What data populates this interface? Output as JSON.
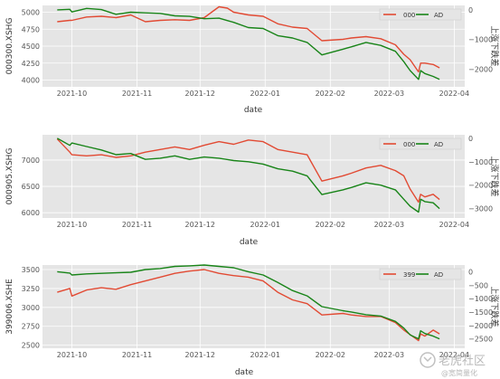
{
  "colors": {
    "price": "#E24A33",
    "ad": "#188418",
    "panel_bg": "#E5E5E5",
    "grid": "#FFFFFF"
  },
  "x_axis_label": "date",
  "x_tick_labels": [
    "2021-10",
    "2021-11",
    "2021-12",
    "2022-01",
    "2022-02",
    "2022-03",
    "2022-04"
  ],
  "watermark": {
    "main": "老虎社区",
    "sub": "@宽简量化",
    "icon": "tiger-logo-icon"
  },
  "chart_data": [
    {
      "type": "line",
      "ylabel": "000300.XSHG",
      "y2label": "上涨下跌差",
      "legend": [
        "000",
        "AD"
      ],
      "legend_position": "upper right",
      "grid": true,
      "ylim": [
        3900,
        5100
      ],
      "y_ticks": [
        4000,
        4250,
        4500,
        4750,
        5000
      ],
      "y2lim": [
        -2600,
        150
      ],
      "y2_ticks": [
        0,
        -1000,
        -2000
      ],
      "y2_tick_labels": [
        "0",
        "−1000",
        "−2000"
      ],
      "xlim": [
        "2021-09-17",
        "2022-04-06"
      ],
      "series": [
        {
          "axis": "left",
          "color": "#E24A33",
          "x": [
            "2021-09-24",
            "2021-09-30",
            "2021-10-01",
            "2021-10-08",
            "2021-10-15",
            "2021-10-22",
            "2021-10-29",
            "2021-11-05",
            "2021-11-12",
            "2021-11-19",
            "2021-11-26",
            "2021-12-03",
            "2021-12-10",
            "2021-12-14",
            "2021-12-17",
            "2021-12-24",
            "2021-12-31",
            "2022-01-07",
            "2022-01-14",
            "2022-01-21",
            "2022-01-28",
            "2022-02-07",
            "2022-02-11",
            "2022-02-18",
            "2022-02-25",
            "2022-03-04",
            "2022-03-08",
            "2022-03-11",
            "2022-03-15",
            "2022-03-16",
            "2022-03-18",
            "2022-03-22",
            "2022-03-25"
          ],
          "y": [
            4860,
            4880,
            4880,
            4930,
            4940,
            4920,
            4960,
            4860,
            4880,
            4890,
            4880,
            4920,
            5080,
            5060,
            5000,
            4960,
            4940,
            4830,
            4780,
            4760,
            4580,
            4600,
            4620,
            4640,
            4610,
            4520,
            4380,
            4300,
            4120,
            4250,
            4250,
            4230,
            4180
          ]
        },
        {
          "axis": "right",
          "color": "#188418",
          "x": [
            "2021-09-24",
            "2021-09-30",
            "2021-10-01",
            "2021-10-08",
            "2021-10-15",
            "2021-10-22",
            "2021-10-29",
            "2021-11-05",
            "2021-11-12",
            "2021-11-19",
            "2021-11-26",
            "2021-12-03",
            "2021-12-10",
            "2021-12-17",
            "2021-12-24",
            "2021-12-31",
            "2022-01-07",
            "2022-01-14",
            "2022-01-21",
            "2022-01-28",
            "2022-02-07",
            "2022-02-11",
            "2022-02-18",
            "2022-02-25",
            "2022-03-04",
            "2022-03-08",
            "2022-03-11",
            "2022-03-15",
            "2022-03-16",
            "2022-03-18",
            "2022-03-22",
            "2022-03-25"
          ],
          "y": [
            0,
            20,
            -70,
            50,
            10,
            -150,
            -80,
            -100,
            -120,
            -200,
            -220,
            -300,
            -280,
            -420,
            -600,
            -630,
            -870,
            -950,
            -1100,
            -1520,
            -1330,
            -1250,
            -1100,
            -1200,
            -1400,
            -1750,
            -2050,
            -2350,
            -2050,
            -2150,
            -2250,
            -2350
          ]
        }
      ]
    },
    {
      "type": "line",
      "ylabel": "000905.XSHG",
      "y2label": "上涨下跌差",
      "legend": [
        "000",
        "AD"
      ],
      "legend_position": "upper right",
      "grid": true,
      "ylim": [
        5900,
        7480
      ],
      "y_ticks": [
        6000,
        6500,
        7000
      ],
      "y2lim": [
        -3400,
        150
      ],
      "y2_ticks": [
        0,
        -1000,
        -2000,
        -3000
      ],
      "y2_tick_labels": [
        "0",
        "−1000",
        "−2000",
        "−3000"
      ],
      "xlim": [
        "2021-09-17",
        "2022-04-06"
      ],
      "series": [
        {
          "axis": "left",
          "color": "#E24A33",
          "x": [
            "2021-09-24",
            "2021-09-30",
            "2021-10-01",
            "2021-10-08",
            "2021-10-15",
            "2021-10-22",
            "2021-10-29",
            "2021-11-05",
            "2021-11-12",
            "2021-11-19",
            "2021-11-26",
            "2021-12-03",
            "2021-12-10",
            "2021-12-17",
            "2021-12-24",
            "2021-12-31",
            "2022-01-07",
            "2022-01-14",
            "2022-01-21",
            "2022-01-28",
            "2022-02-07",
            "2022-02-11",
            "2022-02-18",
            "2022-02-25",
            "2022-03-04",
            "2022-03-08",
            "2022-03-11",
            "2022-03-15",
            "2022-03-16",
            "2022-03-18",
            "2022-03-22",
            "2022-03-25"
          ],
          "y": [
            7400,
            7150,
            7100,
            7080,
            7100,
            7050,
            7080,
            7150,
            7200,
            7250,
            7200,
            7280,
            7350,
            7300,
            7380,
            7350,
            7200,
            7150,
            7100,
            6600,
            6700,
            6750,
            6850,
            6900,
            6800,
            6700,
            6450,
            6200,
            6350,
            6300,
            6350,
            6250
          ]
        },
        {
          "axis": "right",
          "color": "#188418",
          "x": [
            "2021-09-24",
            "2021-09-30",
            "2021-10-01",
            "2021-10-08",
            "2021-10-15",
            "2021-10-22",
            "2021-10-29",
            "2021-11-05",
            "2021-11-12",
            "2021-11-19",
            "2021-11-26",
            "2021-12-03",
            "2021-12-10",
            "2021-12-17",
            "2021-12-24",
            "2021-12-31",
            "2022-01-07",
            "2022-01-14",
            "2022-01-21",
            "2022-01-28",
            "2022-02-07",
            "2022-02-11",
            "2022-02-18",
            "2022-02-25",
            "2022-03-04",
            "2022-03-08",
            "2022-03-11",
            "2022-03-15",
            "2022-03-16",
            "2022-03-18",
            "2022-03-22",
            "2022-03-25"
          ],
          "y": [
            0,
            -300,
            -200,
            -350,
            -500,
            -700,
            -650,
            -900,
            -850,
            -750,
            -900,
            -800,
            -850,
            -950,
            -1000,
            -1100,
            -1300,
            -1400,
            -1600,
            -2400,
            -2200,
            -2100,
            -1900,
            -2000,
            -2200,
            -2600,
            -2900,
            -3150,
            -2600,
            -2700,
            -2750,
            -3000
          ]
        }
      ]
    },
    {
      "type": "line",
      "ylabel": "399006.XSHE",
      "y2label": "上涨下跌差",
      "legend": [
        "399",
        "AD"
      ],
      "legend_position": "upper right",
      "grid": true,
      "ylim": [
        2460,
        3560
      ],
      "y_ticks": [
        2500,
        2750,
        3000,
        3250,
        3500
      ],
      "y2lim": [
        -2850,
        250
      ],
      "y2_ticks": [
        0,
        -500,
        -1000,
        -1500,
        -2000,
        -2500
      ],
      "y2_tick_labels": [
        "0",
        "−500",
        "−1000",
        "−1500",
        "−2000",
        "−2500"
      ],
      "xlim": [
        "2021-09-17",
        "2022-04-06"
      ],
      "series": [
        {
          "axis": "left",
          "color": "#E24A33",
          "x": [
            "2021-09-24",
            "2021-09-30",
            "2021-10-01",
            "2021-10-08",
            "2021-10-15",
            "2021-10-22",
            "2021-10-29",
            "2021-11-05",
            "2021-11-12",
            "2021-11-19",
            "2021-11-26",
            "2021-12-03",
            "2021-12-10",
            "2021-12-17",
            "2021-12-24",
            "2021-12-31",
            "2022-01-07",
            "2022-01-14",
            "2022-01-21",
            "2022-01-28",
            "2022-02-07",
            "2022-02-11",
            "2022-02-18",
            "2022-02-25",
            "2022-03-04",
            "2022-03-08",
            "2022-03-11",
            "2022-03-15",
            "2022-03-16",
            "2022-03-18",
            "2022-03-22",
            "2022-03-25"
          ],
          "y": [
            3200,
            3250,
            3150,
            3230,
            3260,
            3240,
            3300,
            3350,
            3400,
            3450,
            3480,
            3500,
            3450,
            3420,
            3400,
            3350,
            3200,
            3100,
            3050,
            2900,
            2920,
            2900,
            2880,
            2880,
            2800,
            2700,
            2640,
            2560,
            2650,
            2620,
            2700,
            2650
          ]
        },
        {
          "axis": "right",
          "color": "#188418",
          "x": [
            "2021-09-24",
            "2021-09-30",
            "2021-10-01",
            "2021-10-08",
            "2021-10-15",
            "2021-10-22",
            "2021-10-29",
            "2021-11-05",
            "2021-11-12",
            "2021-11-19",
            "2021-11-26",
            "2021-12-03",
            "2021-12-10",
            "2021-12-17",
            "2021-12-24",
            "2021-12-31",
            "2022-01-07",
            "2022-01-14",
            "2022-01-21",
            "2022-01-28",
            "2022-02-07",
            "2022-02-11",
            "2022-02-18",
            "2022-02-25",
            "2022-03-04",
            "2022-03-08",
            "2022-03-11",
            "2022-03-15",
            "2022-03-16",
            "2022-03-18",
            "2022-03-22",
            "2022-03-25"
          ],
          "y": [
            0,
            -50,
            -120,
            -80,
            -60,
            -40,
            -20,
            80,
            120,
            200,
            220,
            250,
            200,
            150,
            0,
            -120,
            -400,
            -700,
            -900,
            -1300,
            -1450,
            -1500,
            -1600,
            -1650,
            -1850,
            -2100,
            -2350,
            -2500,
            -2200,
            -2300,
            -2400,
            -2500
          ]
        }
      ]
    }
  ]
}
